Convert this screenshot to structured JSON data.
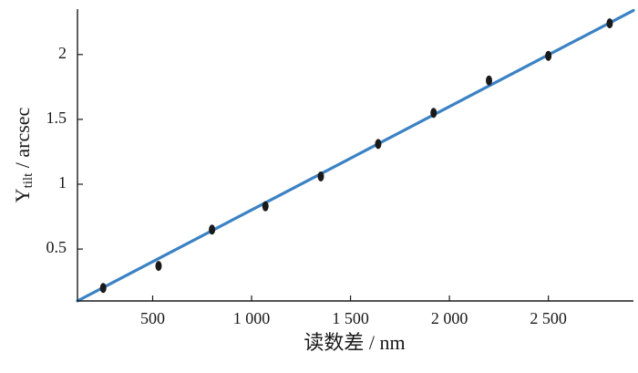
{
  "chart_data": {
    "type": "scatter",
    "xlabel": "读数差 / nm",
    "ylabel": {
      "main": "Y",
      "subscript": "tilt",
      "unit": " / arcsec"
    },
    "xlim": [
      120,
      2930
    ],
    "ylim": [
      0.1,
      2.35
    ],
    "x_ticks": [
      500,
      1000,
      1500,
      2000,
      2500
    ],
    "x_tick_labels": [
      "500",
      "1 000",
      "1 500",
      "2 000",
      "2 500"
    ],
    "y_ticks": [
      0.5,
      1,
      1.5,
      2
    ],
    "y_tick_labels": [
      "0.5",
      "1",
      "1.5",
      "2"
    ],
    "grid": false,
    "series": [
      {
        "kind": "points",
        "color": "#1a1a1a",
        "x": [
          250,
          530,
          800,
          1070,
          1350,
          1640,
          1920,
          2200,
          2500,
          2810
        ],
        "y": [
          0.2,
          0.37,
          0.65,
          0.83,
          1.06,
          1.31,
          1.55,
          1.8,
          1.99,
          2.24
        ]
      },
      {
        "kind": "fit-line",
        "color": "#3b82c4",
        "x": [
          120,
          2930
        ],
        "y": [
          0.1,
          2.34
        ]
      }
    ]
  }
}
